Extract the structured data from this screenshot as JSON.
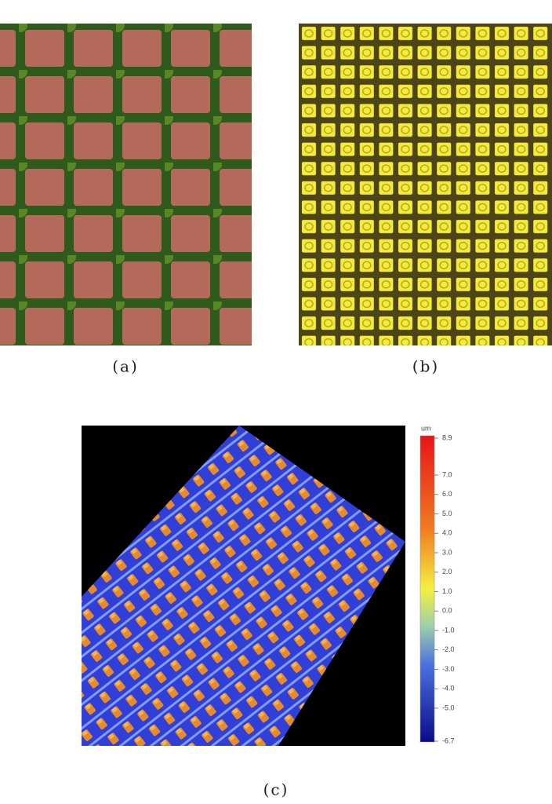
{
  "captions": {
    "a": "(a)",
    "b": "(b)",
    "c": "(c)"
  },
  "colorbar": {
    "unit": "um",
    "range": [
      -6.7,
      8.9
    ],
    "ticks": [
      8.9,
      {
        "value": 7,
        "label": "7.0"
      },
      {
        "value": 6,
        "label": "6.0"
      },
      {
        "value": 5,
        "label": "5.0"
      },
      {
        "value": 4,
        "label": "4.0"
      },
      {
        "value": 3,
        "label": "3.0"
      },
      {
        "value": 2,
        "label": "2.0"
      },
      {
        "value": 1,
        "label": "1.0"
      },
      {
        "value": 0,
        "label": "0.0"
      },
      {
        "value": -1,
        "label": "-1.0"
      },
      {
        "value": -2,
        "label": "-2.0"
      },
      {
        "value": -3,
        "label": "-3.0"
      },
      {
        "value": -4,
        "label": "-4.0"
      },
      {
        "value": -5,
        "label": "-5.0"
      },
      -6.7
    ]
  }
}
